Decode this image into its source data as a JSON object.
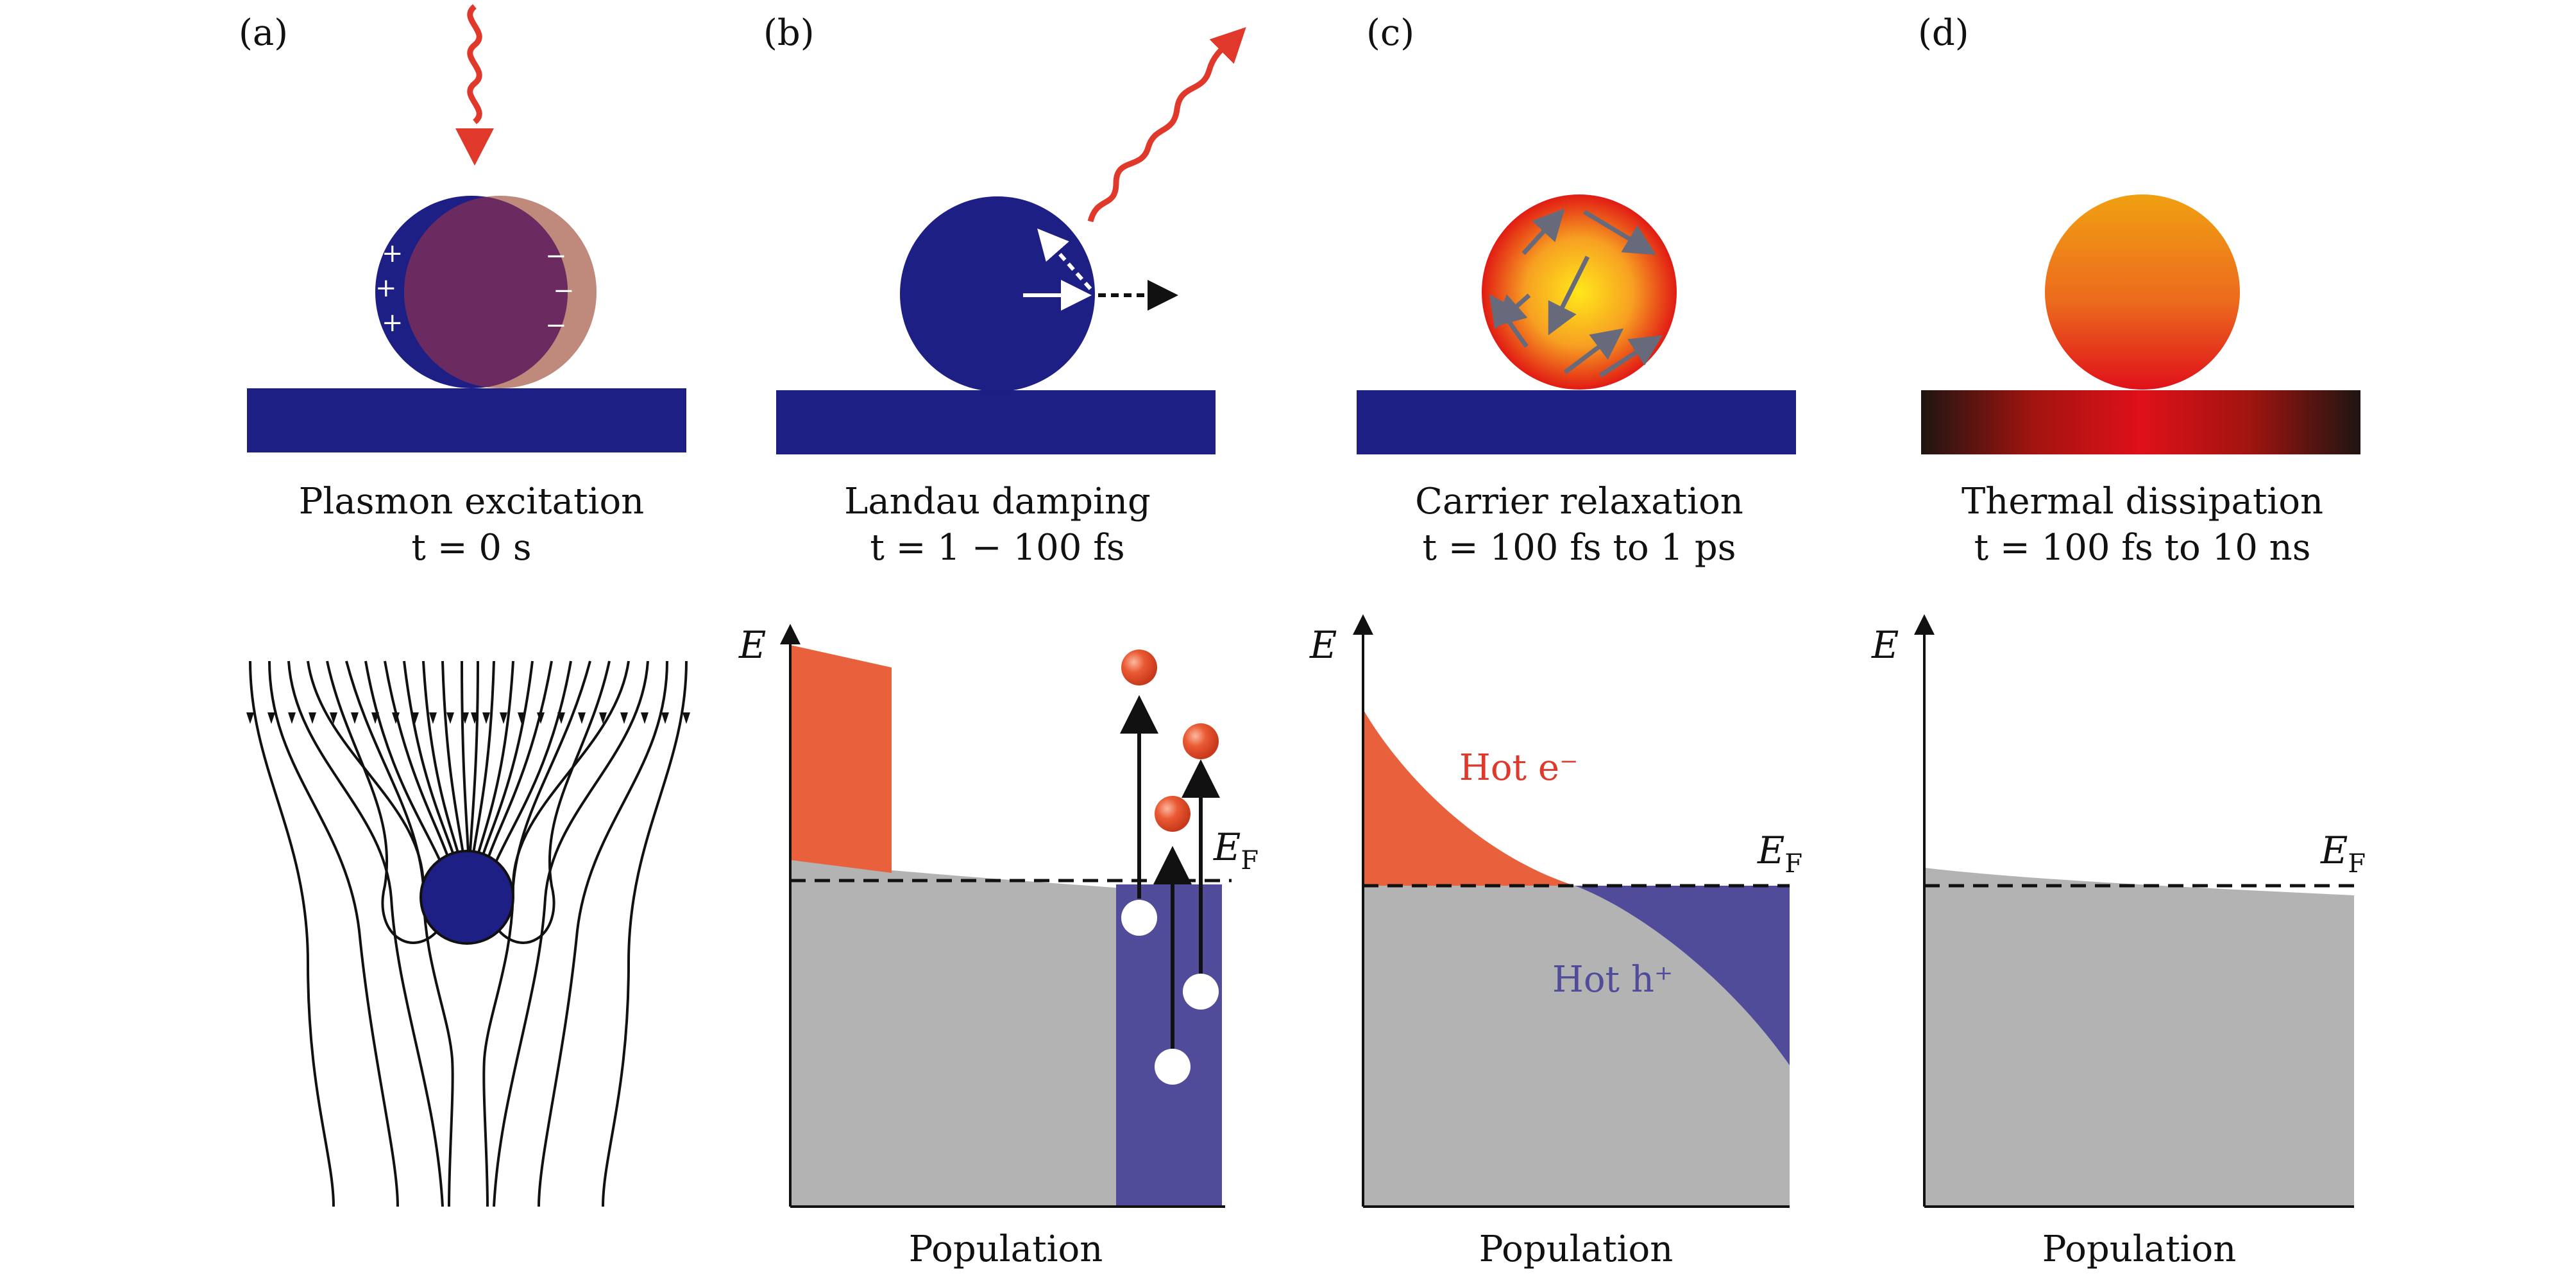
{
  "panels": [
    {
      "letter": "(a)",
      "title": "Plasmon excitation",
      "time": "t = 0 s"
    },
    {
      "letter": "(b)",
      "title": "Landau damping",
      "time": "t = 1 − 100 fs"
    },
    {
      "letter": "(c)",
      "title": "Carrier relaxation",
      "time": "t = 100 fs to 1 ps"
    },
    {
      "letter": "(d)",
      "title": "Thermal dissipation",
      "time": "t = 100 fs to 10 ns"
    }
  ],
  "axes": {
    "energy": "E",
    "population": "Population",
    "fermi": "E",
    "fermi_sub": "F"
  },
  "labels": {
    "hot_e": "Hot e⁻",
    "hot_h": "Hot h⁺"
  },
  "charges": {
    "plus": "+",
    "minus": "−"
  },
  "colors": {
    "navy": "#1d1f85",
    "orange": "#e8603c",
    "gray": "#b3b3b3",
    "hole_blue": "#514c9a",
    "red_arrow": "#e0382a"
  }
}
